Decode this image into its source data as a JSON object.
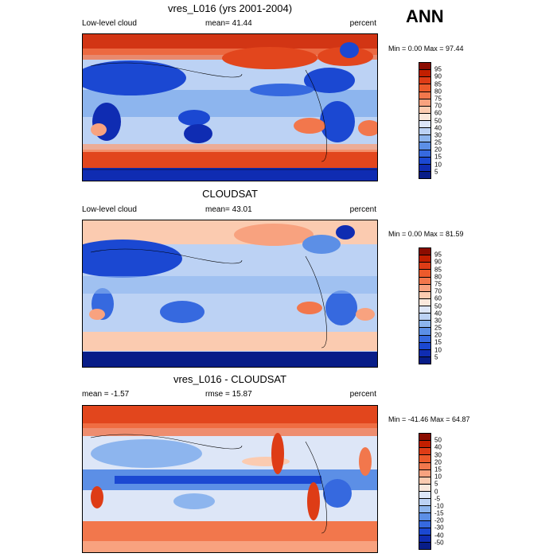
{
  "season_label": "ANN",
  "panels": [
    {
      "title": "vres_L016 (yrs 2001-2004)",
      "left_label": "Low-level cloud",
      "center_label": "mean=  41.44",
      "right_label": "percent",
      "minmax": "Min =   0.00 Max =  97.44",
      "colorbar": {
        "labels": [
          "95",
          "90",
          "85",
          "80",
          "75",
          "70",
          "60",
          "50",
          "40",
          "30",
          "25",
          "20",
          "15",
          "10",
          "5"
        ],
        "colors": [
          "#8b0c00",
          "#c21f00",
          "#de3c16",
          "#ec5a2b",
          "#f2774c",
          "#f8a27f",
          "#fbcbb0",
          "#fae8dc",
          "#dde6f7",
          "#bcd2f4",
          "#8db5ee",
          "#5c8fe6",
          "#3669df",
          "#1b48d2",
          "#0f2cb2",
          "#081d88"
        ]
      }
    },
    {
      "title": "CLOUDSAT",
      "left_label": "Low-level cloud",
      "center_label": "mean=  43.01",
      "right_label": "percent",
      "minmax": "Min =   0.00 Max =  81.59",
      "colorbar": {
        "labels": [
          "95",
          "90",
          "85",
          "80",
          "75",
          "70",
          "60",
          "50",
          "40",
          "30",
          "25",
          "20",
          "15",
          "10",
          "5"
        ],
        "colors": [
          "#8b0c00",
          "#c21f00",
          "#de3c16",
          "#ec5a2b",
          "#f2774c",
          "#f8a27f",
          "#fbcbb0",
          "#fae8dc",
          "#dde6f7",
          "#bcd2f4",
          "#8db5ee",
          "#5c8fe6",
          "#3669df",
          "#1b48d2",
          "#0f2cb2",
          "#081d88"
        ]
      }
    },
    {
      "title": "vres_L016 - CLOUDSAT",
      "left_label": "mean =  -1.57",
      "center_label": "rmse =  15.87",
      "right_label": "percent",
      "minmax": "Min = -41.46 Max =  64.87",
      "colorbar": {
        "labels": [
          "50",
          "40",
          "30",
          "20",
          "15",
          "10",
          "5",
          "0",
          "-5",
          "-10",
          "-15",
          "-20",
          "-30",
          "-40",
          "-50"
        ],
        "colors": [
          "#8b0c00",
          "#c21f00",
          "#de3c16",
          "#ec5a2b",
          "#f2774c",
          "#f8a27f",
          "#fbcbb0",
          "#fae8dc",
          "#dde6f7",
          "#bcd2f4",
          "#8db5ee",
          "#5c8fe6",
          "#3669df",
          "#1b48d2",
          "#0f2cb2",
          "#081d88"
        ]
      }
    }
  ]
}
